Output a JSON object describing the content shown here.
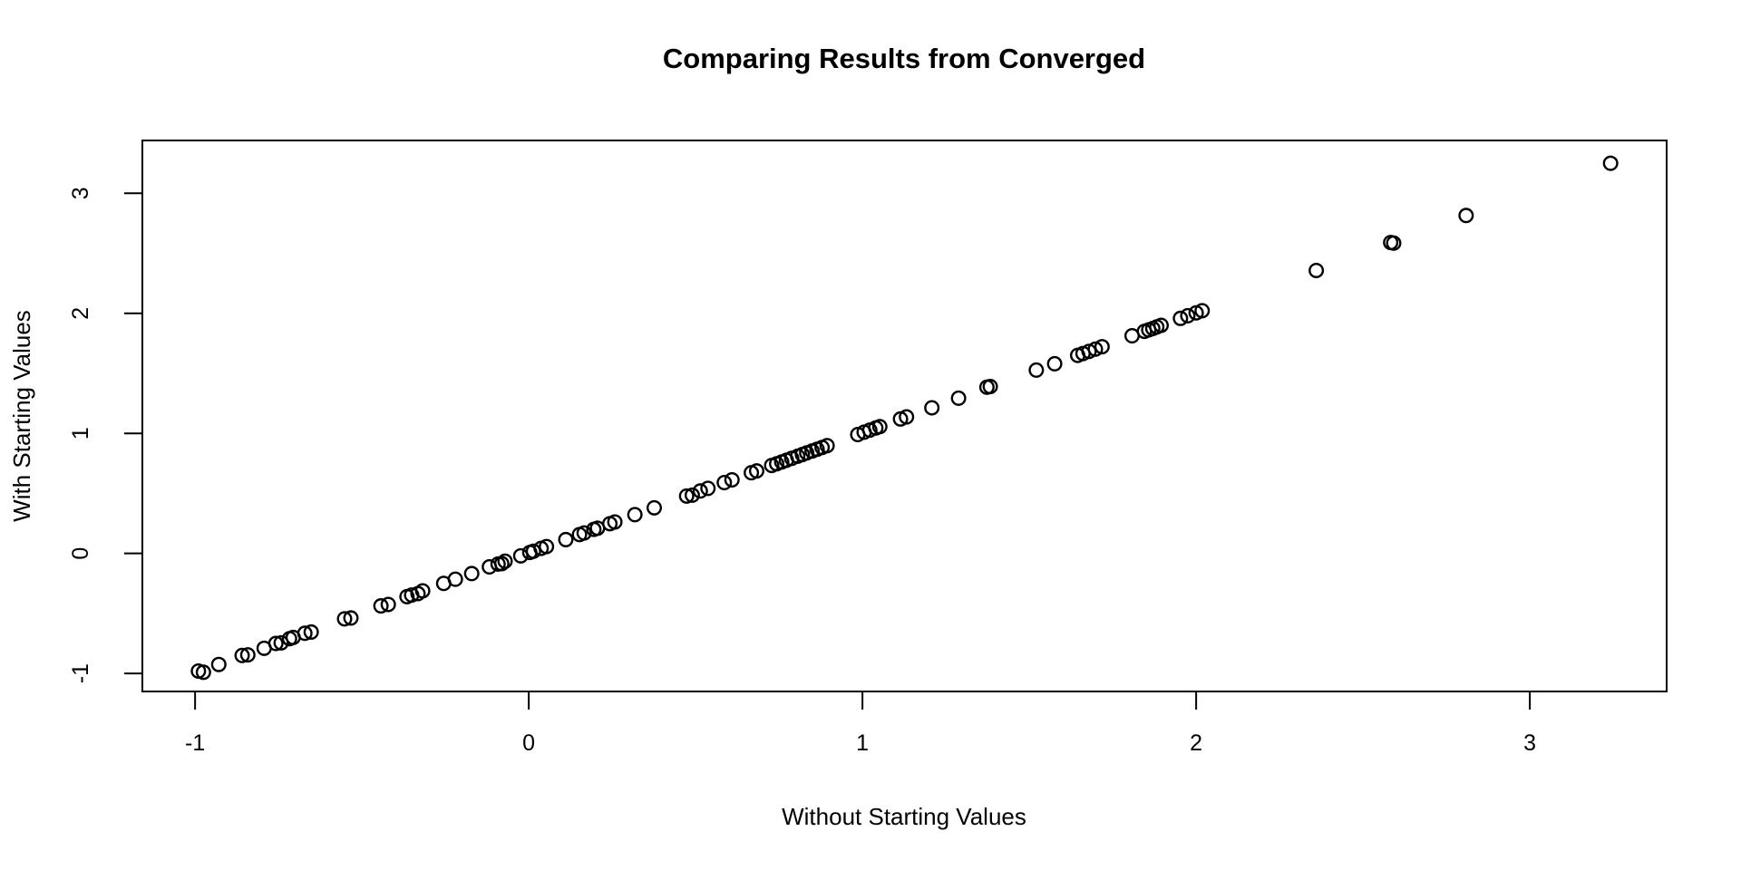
{
  "chart_data": {
    "type": "scatter",
    "title": "Comparing Results from Converged",
    "xlabel": "Without Starting Values",
    "ylabel": "With Starting Values",
    "xlim": [
      -1.158,
      3.41
    ],
    "ylim": [
      -1.15,
      3.44
    ],
    "x_ticks": [
      -1,
      0,
      1,
      2,
      3
    ],
    "y_ticks": [
      -1,
      0,
      1,
      2,
      3
    ],
    "grid": false,
    "legend": "none",
    "marker": {
      "shape": "open-circle",
      "color": "#000000",
      "radius_px": 7.3,
      "stroke_px": 2.4
    },
    "frame_color": "#000000",
    "points": [
      [
        -0.99,
        -0.98
      ],
      [
        -0.975,
        -0.99
      ],
      [
        -0.929,
        -0.925
      ],
      [
        -0.859,
        -0.85
      ],
      [
        -0.842,
        -0.845
      ],
      [
        -0.793,
        -0.79
      ],
      [
        -0.758,
        -0.75
      ],
      [
        -0.742,
        -0.745
      ],
      [
        -0.717,
        -0.71
      ],
      [
        -0.706,
        -0.7
      ],
      [
        -0.671,
        -0.665
      ],
      [
        -0.652,
        -0.655
      ],
      [
        -0.552,
        -0.545
      ],
      [
        -0.533,
        -0.538
      ],
      [
        -0.443,
        -0.437
      ],
      [
        -0.421,
        -0.425
      ],
      [
        -0.365,
        -0.36
      ],
      [
        -0.351,
        -0.347
      ],
      [
        -0.332,
        -0.335
      ],
      [
        -0.318,
        -0.312
      ],
      [
        -0.255,
        -0.25
      ],
      [
        -0.22,
        -0.215
      ],
      [
        -0.171,
        -0.168
      ],
      [
        -0.118,
        -0.112
      ],
      [
        -0.092,
        -0.088
      ],
      [
        -0.081,
        -0.085
      ],
      [
        -0.071,
        -0.065
      ],
      [
        -0.024,
        -0.02
      ],
      [
        0.003,
        0.008
      ],
      [
        0.014,
        0.018
      ],
      [
        0.037,
        0.042
      ],
      [
        0.053,
        0.057
      ],
      [
        0.111,
        0.115
      ],
      [
        0.152,
        0.157
      ],
      [
        0.166,
        0.17
      ],
      [
        0.195,
        0.2
      ],
      [
        0.206,
        0.21
      ],
      [
        0.243,
        0.248
      ],
      [
        0.258,
        0.262
      ],
      [
        0.318,
        0.323
      ],
      [
        0.376,
        0.38
      ],
      [
        0.473,
        0.478
      ],
      [
        0.49,
        0.485
      ],
      [
        0.514,
        0.52
      ],
      [
        0.537,
        0.542
      ],
      [
        0.586,
        0.59
      ],
      [
        0.609,
        0.613
      ],
      [
        0.667,
        0.672
      ],
      [
        0.683,
        0.687
      ],
      [
        0.728,
        0.733
      ],
      [
        0.743,
        0.747
      ],
      [
        0.758,
        0.762
      ],
      [
        0.772,
        0.776
      ],
      [
        0.788,
        0.792
      ],
      [
        0.806,
        0.81
      ],
      [
        0.82,
        0.824
      ],
      [
        0.833,
        0.837
      ],
      [
        0.849,
        0.853
      ],
      [
        0.864,
        0.868
      ],
      [
        0.879,
        0.883
      ],
      [
        0.894,
        0.898
      ],
      [
        0.986,
        0.99
      ],
      [
        1.005,
        1.01
      ],
      [
        1.022,
        1.027
      ],
      [
        1.04,
        1.045
      ],
      [
        1.052,
        1.056
      ],
      [
        1.114,
        1.12
      ],
      [
        1.132,
        1.137
      ],
      [
        1.208,
        1.213
      ],
      [
        1.288,
        1.293
      ],
      [
        1.373,
        1.385
      ],
      [
        1.383,
        1.39
      ],
      [
        1.521,
        1.527
      ],
      [
        1.576,
        1.58
      ],
      [
        1.645,
        1.65
      ],
      [
        1.661,
        1.665
      ],
      [
        1.679,
        1.683
      ],
      [
        1.698,
        1.702
      ],
      [
        1.718,
        1.722
      ],
      [
        1.808,
        1.813
      ],
      [
        1.845,
        1.85
      ],
      [
        1.858,
        1.862
      ],
      [
        1.87,
        1.874
      ],
      [
        1.882,
        1.887
      ],
      [
        1.895,
        1.9
      ],
      [
        1.953,
        1.958
      ],
      [
        1.975,
        1.98
      ],
      [
        2.0,
        2.004
      ],
      [
        2.018,
        2.022
      ],
      [
        2.36,
        2.357
      ],
      [
        2.583,
        2.59
      ],
      [
        2.592,
        2.585
      ],
      [
        2.809,
        2.815
      ],
      [
        3.242,
        3.25
      ]
    ]
  }
}
